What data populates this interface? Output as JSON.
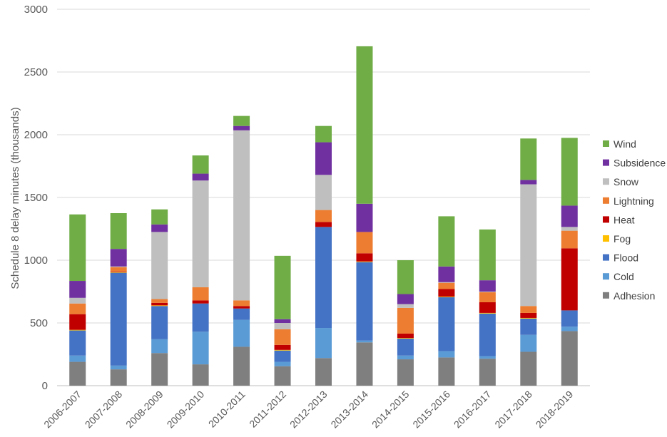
{
  "chart_data": {
    "type": "bar",
    "stacked": true,
    "title": "",
    "xlabel": "",
    "ylabel": "Schedule 8 delay minutes (thousands)",
    "ylim": [
      0,
      3000
    ],
    "yticks": [
      0,
      500,
      1000,
      1500,
      2000,
      2500,
      3000
    ],
    "grid": true,
    "legend_position": "right",
    "categories": [
      "2006-2007",
      "2007-2008",
      "2008-2009",
      "2009-2010",
      "2010-2011",
      "2011-2012",
      "2012-2013",
      "2013-2014",
      "2014-2015",
      "2015-2016",
      "2016-2017",
      "2017-2018",
      "2018-2019"
    ],
    "series": [
      {
        "name": "Adhesion",
        "color": "#7f7f7f",
        "values": [
          190,
          130,
          260,
          170,
          310,
          155,
          220,
          345,
          210,
          225,
          215,
          270,
          435
        ]
      },
      {
        "name": "Cold",
        "color": "#5b9bd5",
        "values": [
          50,
          30,
          110,
          260,
          215,
          35,
          240,
          15,
          30,
          50,
          20,
          135,
          35
        ]
      },
      {
        "name": "Flood",
        "color": "#4472c4",
        "values": [
          200,
          740,
          265,
          225,
          90,
          90,
          805,
          625,
          135,
          430,
          340,
          130,
          130
        ]
      },
      {
        "name": "Fog",
        "color": "#ffc000",
        "values": [
          5,
          5,
          5,
          0,
          0,
          5,
          0,
          5,
          5,
          5,
          5,
          5,
          0
        ]
      },
      {
        "name": "Heat",
        "color": "#c00000",
        "values": [
          125,
          5,
          20,
          25,
          20,
          40,
          40,
          65,
          35,
          60,
          85,
          40,
          495
        ]
      },
      {
        "name": "Lightning",
        "color": "#ed7d31",
        "values": [
          85,
          35,
          30,
          105,
          45,
          125,
          95,
          170,
          205,
          50,
          80,
          55,
          140
        ]
      },
      {
        "name": "Snow",
        "color": "#bfbfbf",
        "values": [
          45,
          5,
          535,
          850,
          1355,
          50,
          280,
          0,
          30,
          5,
          5,
          970,
          30
        ]
      },
      {
        "name": "Subsidence",
        "color": "#7030a0",
        "values": [
          135,
          140,
          60,
          55,
          35,
          30,
          260,
          225,
          80,
          125,
          90,
          35,
          170
        ]
      },
      {
        "name": "Wind",
        "color": "#70ad47",
        "values": [
          530,
          285,
          120,
          145,
          80,
          505,
          130,
          1255,
          270,
          400,
          405,
          330,
          540
        ]
      }
    ]
  }
}
